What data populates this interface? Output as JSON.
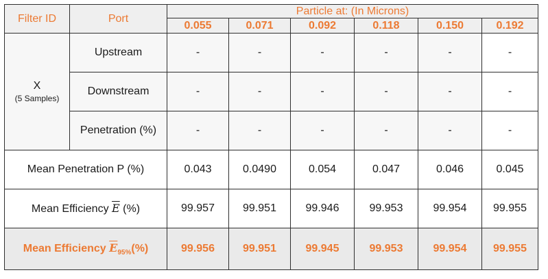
{
  "header": {
    "filter_id": "Filter ID",
    "port": "Port",
    "particle_at": "Particle at: (In Microns)",
    "sizes": [
      "0.055",
      "0.071",
      "0.092",
      "0.118",
      "0.150",
      "0.192"
    ]
  },
  "sample": {
    "id": "X",
    "note": "(5 Samples)",
    "rows": [
      {
        "port": "Upstream",
        "values": [
          "-",
          "-",
          "-",
          "-",
          "-",
          "-"
        ]
      },
      {
        "port": "Downstream",
        "values": [
          "-",
          "-",
          "-",
          "-",
          "-",
          "-"
        ]
      },
      {
        "port": "Penetration (%)",
        "values": [
          "-",
          "-",
          "-",
          "-",
          "-",
          "-"
        ]
      }
    ]
  },
  "mean_penetration": {
    "label": "Mean Penetration P (%)",
    "values": [
      "0.043",
      "0.0490",
      "0.054",
      "0.047",
      "0.046",
      "0.045"
    ]
  },
  "mean_efficiency": {
    "label_prefix": "Mean Efficiency",
    "symbol": "E",
    "label_suffix": "(%)",
    "values": [
      "99.957",
      "99.951",
      "99.946",
      "99.953",
      "99.954",
      "99.955"
    ]
  },
  "mean_efficiency_95": {
    "label_prefix": "Mean Efficiency",
    "symbol": "E",
    "subscript": "95%",
    "label_suffix": "(%)",
    "values": [
      "99.956",
      "99.951",
      "99.945",
      "99.953",
      "99.954",
      "99.955"
    ]
  }
}
